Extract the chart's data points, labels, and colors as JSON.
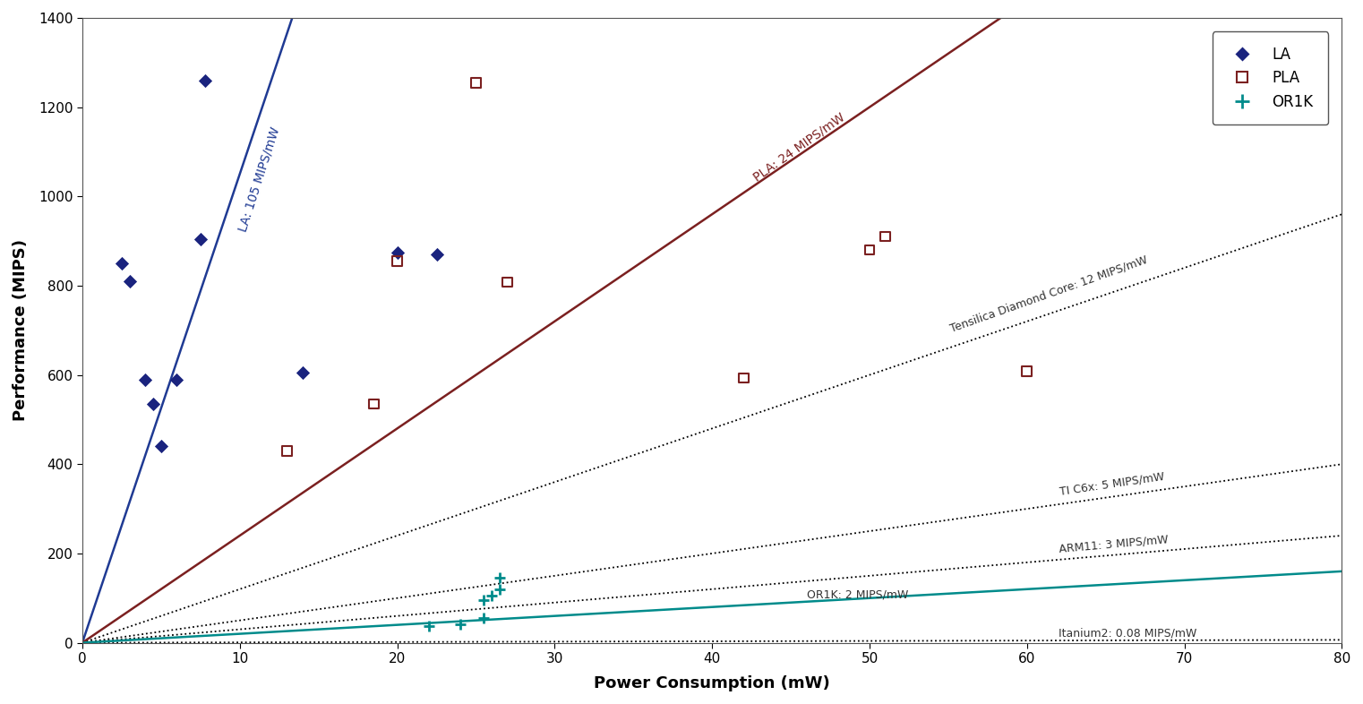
{
  "xlabel": "Power Consumption (mW)",
  "ylabel": "Performance (MIPS)",
  "xlim": [
    0,
    80
  ],
  "ylim": [
    0,
    1400
  ],
  "xticks": [
    0,
    10,
    20,
    30,
    40,
    50,
    60,
    70,
    80
  ],
  "yticks": [
    0,
    200,
    400,
    600,
    800,
    1000,
    1200,
    1400
  ],
  "la_points": [
    [
      2.5,
      850
    ],
    [
      3.0,
      810
    ],
    [
      4.0,
      590
    ],
    [
      4.5,
      535
    ],
    [
      5.0,
      440
    ],
    [
      6.0,
      590
    ],
    [
      7.5,
      905
    ],
    [
      7.8,
      1260
    ],
    [
      14.0,
      605
    ],
    [
      20.0,
      875
    ],
    [
      22.5,
      870
    ]
  ],
  "pla_points": [
    [
      13.0,
      430
    ],
    [
      18.5,
      535
    ],
    [
      20.0,
      855
    ],
    [
      25.0,
      1255
    ],
    [
      27.0,
      808
    ],
    [
      42.0,
      593
    ],
    [
      50.0,
      880
    ],
    [
      51.0,
      910
    ],
    [
      60.0,
      608
    ]
  ],
  "or1k_points": [
    [
      22.0,
      38
    ],
    [
      24.0,
      42
    ],
    [
      25.5,
      55
    ],
    [
      25.5,
      95
    ],
    [
      26.0,
      105
    ],
    [
      26.5,
      120
    ],
    [
      26.5,
      145
    ]
  ],
  "la_line_slope": 105,
  "la_line_color": "#1f3a93",
  "pla_line_slope": 24,
  "pla_line_color": "#7b2020",
  "or1k_line_slope": 2,
  "or1k_line_color": "#008b8b",
  "ref_lines": [
    {
      "label": "Tensilica Diamond Core: 12 MIPS/mW",
      "slope": 12
    },
    {
      "label": "TI C6x: 5 MIPS/mW",
      "slope": 5
    },
    {
      "label": "ARM11: 3 MIPS/mW",
      "slope": 3
    },
    {
      "label": "Itanium2: 0.08 MIPS/mW",
      "slope": 0.08
    }
  ],
  "background_color": "#ffffff",
  "la_color": "#1a237e",
  "pla_color": "#7b2020",
  "or1k_color": "#008b8b",
  "text_color": "#333333"
}
